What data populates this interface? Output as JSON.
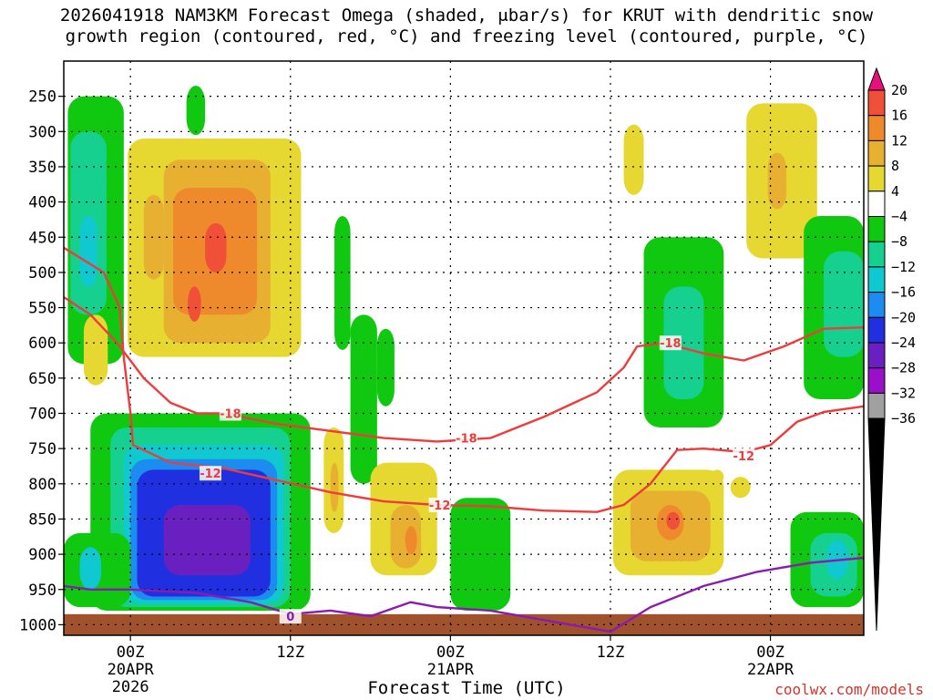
{
  "chart_data": {
    "type": "heatmap",
    "title_line1": "2026041918 NAM3KM Forecast Omega (shaded, μbar/s) for KRUT with dendritic snow",
    "title_line2": "growth region (contoured, red, °C) and freezing level (contoured, purple, °C)",
    "xlabel": "Forecast Time (UTC)",
    "ylabel": "",
    "x_ticks": [
      {
        "hour": 5,
        "label": "00Z",
        "sub1": "20APR",
        "sub2": "2026"
      },
      {
        "hour": 17,
        "label": "12Z",
        "sub1": "",
        "sub2": ""
      },
      {
        "hour": 29,
        "label": "00Z",
        "sub1": "21APR",
        "sub2": ""
      },
      {
        "hour": 41,
        "label": "12Z",
        "sub1": "",
        "sub2": ""
      },
      {
        "hour": 53,
        "label": "00Z",
        "sub1": "22APR",
        "sub2": ""
      }
    ],
    "xlim": [
      0,
      60
    ],
    "y_ticks": [
      "250",
      "300",
      "350",
      "400",
      "450",
      "500",
      "550",
      "600",
      "650",
      "700",
      "750",
      "800",
      "850",
      "900",
      "950",
      "1000"
    ],
    "ylim": [
      200,
      1015
    ],
    "colorbar": {
      "levels": [
        -36,
        -32,
        -28,
        -24,
        -20,
        -16,
        -12,
        -8,
        -4,
        4,
        8,
        12,
        16,
        20
      ],
      "labels": [
        "20",
        "16",
        "12",
        "8",
        "4",
        "−4",
        "−8",
        "−12",
        "−16",
        "−20",
        "−24",
        "−28",
        "−32",
        "−36"
      ],
      "colors": [
        "#000000",
        "#a0a0a0",
        "#9a10c8",
        "#6a1fc0",
        "#2030e0",
        "#1c8cf0",
        "#10c8d0",
        "#16d090",
        "#10c810",
        "#ffffff",
        "#e6d830",
        "#e8b030",
        "#ee8a2c",
        "#f05038",
        "#e8107a"
      ]
    },
    "omega_cells": [
      {
        "t": 0.3,
        "p": 250,
        "t1": 4.5,
        "p1": 630,
        "v": -6
      },
      {
        "t": 0.5,
        "p": 300,
        "t1": 3.2,
        "p1": 560,
        "v": -10
      },
      {
        "t": 1.2,
        "p": 420,
        "t1": 2.5,
        "p1": 520,
        "v": -14
      },
      {
        "t": 1.5,
        "p": 560,
        "t1": 3.3,
        "p1": 660,
        "v": 5
      },
      {
        "t": 9.2,
        "p": 235,
        "t1": 10.6,
        "p1": 305,
        "v": -6
      },
      {
        "t": 4.8,
        "p": 310,
        "t1": 17.8,
        "p1": 620,
        "v": 5
      },
      {
        "t": 7.5,
        "p": 340,
        "t1": 15.5,
        "p1": 600,
        "v": 9
      },
      {
        "t": 8.2,
        "p": 380,
        "t1": 14.5,
        "p1": 560,
        "v": 13
      },
      {
        "t": 10.6,
        "p": 430,
        "t1": 12.2,
        "p1": 500,
        "v": 17
      },
      {
        "t": 9.3,
        "p": 520,
        "t1": 10.3,
        "p1": 570,
        "v": 17
      },
      {
        "t": 6.0,
        "p": 390,
        "t1": 7.5,
        "p1": 510,
        "v": 9
      },
      {
        "t": 20.3,
        "p": 420,
        "t1": 21.5,
        "p1": 610,
        "v": -6
      },
      {
        "t": 21.5,
        "p": 560,
        "t1": 23.5,
        "p1": 800,
        "v": -6
      },
      {
        "t": 23.5,
        "p": 580,
        "t1": 24.8,
        "p1": 690,
        "v": -6
      },
      {
        "t": 19.5,
        "p": 720,
        "t1": 21.0,
        "p1": 870,
        "v": 5
      },
      {
        "t": 20.0,
        "p": 770,
        "t1": 20.6,
        "p1": 840,
        "v": 9
      },
      {
        "t": 23.0,
        "p": 770,
        "t1": 28.0,
        "p1": 930,
        "v": 5
      },
      {
        "t": 24.5,
        "p": 830,
        "t1": 26.8,
        "p1": 920,
        "v": 9
      },
      {
        "t": 25.6,
        "p": 860,
        "t1": 26.5,
        "p1": 900,
        "v": 13
      },
      {
        "t": 29.0,
        "p": 820,
        "t1": 33.5,
        "p1": 980,
        "v": -6
      },
      {
        "t": 2.0,
        "p": 700,
        "t1": 18.5,
        "p1": 980,
        "v": -6
      },
      {
        "t": 3.5,
        "p": 720,
        "t1": 17.0,
        "p1": 975,
        "v": -10
      },
      {
        "t": 4.5,
        "p": 745,
        "t1": 16.5,
        "p1": 970,
        "v": -14
      },
      {
        "t": 5.0,
        "p": 765,
        "t1": 16.0,
        "p1": 965,
        "v": -18
      },
      {
        "t": 5.5,
        "p": 780,
        "t1": 15.5,
        "p1": 960,
        "v": -22
      },
      {
        "t": 7.5,
        "p": 830,
        "t1": 14.0,
        "p1": 930,
        "v": -26
      },
      {
        "t": 0.0,
        "p": 870,
        "t1": 5.0,
        "p1": 975,
        "v": -6
      },
      {
        "t": 1.2,
        "p": 890,
        "t1": 2.8,
        "p1": 950,
        "v": -12
      },
      {
        "t": 41.2,
        "p": 780,
        "t1": 49.5,
        "p1": 930,
        "v": 5
      },
      {
        "t": 42.5,
        "p": 810,
        "t1": 48.5,
        "p1": 910,
        "v": 9
      },
      {
        "t": 44.5,
        "p": 830,
        "t1": 46.5,
        "p1": 880,
        "v": 13
      },
      {
        "t": 45.2,
        "p": 840,
        "t1": 46.2,
        "p1": 865,
        "v": 17
      },
      {
        "t": 48.5,
        "p": 780,
        "t1": 49.5,
        "p1": 800,
        "v": 5
      },
      {
        "t": 50.0,
        "p": 790,
        "t1": 51.5,
        "p1": 820,
        "v": 5
      },
      {
        "t": 43.5,
        "p": 450,
        "t1": 49.5,
        "p1": 720,
        "v": -6
      },
      {
        "t": 45.0,
        "p": 520,
        "t1": 48.0,
        "p1": 680,
        "v": -10
      },
      {
        "t": 42.0,
        "p": 290,
        "t1": 43.5,
        "p1": 390,
        "v": 5
      },
      {
        "t": 51.2,
        "p": 260,
        "t1": 56.5,
        "p1": 480,
        "v": 5
      },
      {
        "t": 52.8,
        "p": 330,
        "t1": 54.2,
        "p1": 410,
        "v": 9
      },
      {
        "t": 55.5,
        "p": 420,
        "t1": 60.0,
        "p1": 680,
        "v": -6
      },
      {
        "t": 57.0,
        "p": 470,
        "t1": 60.0,
        "p1": 620,
        "v": -10
      },
      {
        "t": 54.5,
        "p": 840,
        "t1": 60.0,
        "p1": 975,
        "v": -6
      },
      {
        "t": 56.0,
        "p": 870,
        "t1": 59.5,
        "p1": 960,
        "v": -10
      },
      {
        "t": 57.2,
        "p": 880,
        "t1": 58.8,
        "p1": 935,
        "v": -14
      }
    ],
    "series": [
      {
        "name": "-18 °C isotherm (DGZ top)",
        "color": "#ee3c3c",
        "label": "-18",
        "label_positions": [
          {
            "t": 12.5,
            "p": 700
          },
          {
            "t": 30.2,
            "p": 735
          },
          {
            "t": 45.5,
            "p": 600
          }
        ],
        "points": [
          [
            0,
            535
          ],
          [
            2,
            560
          ],
          [
            4,
            600
          ],
          [
            6,
            650
          ],
          [
            8,
            685
          ],
          [
            10,
            700
          ],
          [
            12,
            700
          ],
          [
            16,
            715
          ],
          [
            20,
            725
          ],
          [
            24,
            735
          ],
          [
            28,
            740
          ],
          [
            32,
            735
          ],
          [
            36,
            705
          ],
          [
            40,
            670
          ],
          [
            42,
            635
          ],
          [
            43,
            605
          ],
          [
            45,
            600
          ],
          [
            48,
            615
          ],
          [
            51,
            625
          ],
          [
            54,
            605
          ],
          [
            57,
            580
          ],
          [
            60,
            578
          ]
        ]
      },
      {
        "name": "-12 °C isotherm (DGZ bottom)",
        "color": "#ee3c3c",
        "label": "-12",
        "label_positions": [
          {
            "t": 11.0,
            "p": 785
          },
          {
            "t": 28.2,
            "p": 830
          },
          {
            "t": 51.0,
            "p": 760
          }
        ],
        "points": [
          [
            0,
            465
          ],
          [
            3,
            500
          ],
          [
            4.2,
            550
          ],
          [
            4.5,
            620
          ],
          [
            5.0,
            700
          ],
          [
            5.2,
            745
          ],
          [
            8,
            770
          ],
          [
            12,
            778
          ],
          [
            16,
            795
          ],
          [
            20,
            812
          ],
          [
            24,
            825
          ],
          [
            28,
            830
          ],
          [
            32,
            832
          ],
          [
            36,
            838
          ],
          [
            40,
            840
          ],
          [
            42,
            830
          ],
          [
            44,
            800
          ],
          [
            46,
            752
          ],
          [
            48,
            750
          ],
          [
            51,
            755
          ],
          [
            53,
            745
          ],
          [
            55,
            712
          ],
          [
            57,
            698
          ],
          [
            60,
            690
          ]
        ]
      },
      {
        "name": "0 °C isotherm (freezing level)",
        "color": "#8d1ab0",
        "label": "0",
        "label_positions": [
          {
            "t": 17.0,
            "p": 988
          }
        ],
        "points": [
          [
            0,
            945
          ],
          [
            2,
            950
          ],
          [
            5,
            950
          ],
          [
            10,
            955
          ],
          [
            14,
            968
          ],
          [
            17,
            985
          ],
          [
            20,
            980
          ],
          [
            23,
            988
          ],
          [
            26,
            968
          ],
          [
            28,
            975
          ],
          [
            32,
            980
          ],
          [
            41,
            1010
          ],
          [
            44,
            975
          ],
          [
            48,
            945
          ],
          [
            52,
            925
          ],
          [
            56,
            912
          ],
          [
            60,
            905
          ]
        ]
      }
    ],
    "ground": {
      "from_hpa": 985,
      "color": "#a0522d"
    }
  },
  "credit": "coolwx.com/models"
}
